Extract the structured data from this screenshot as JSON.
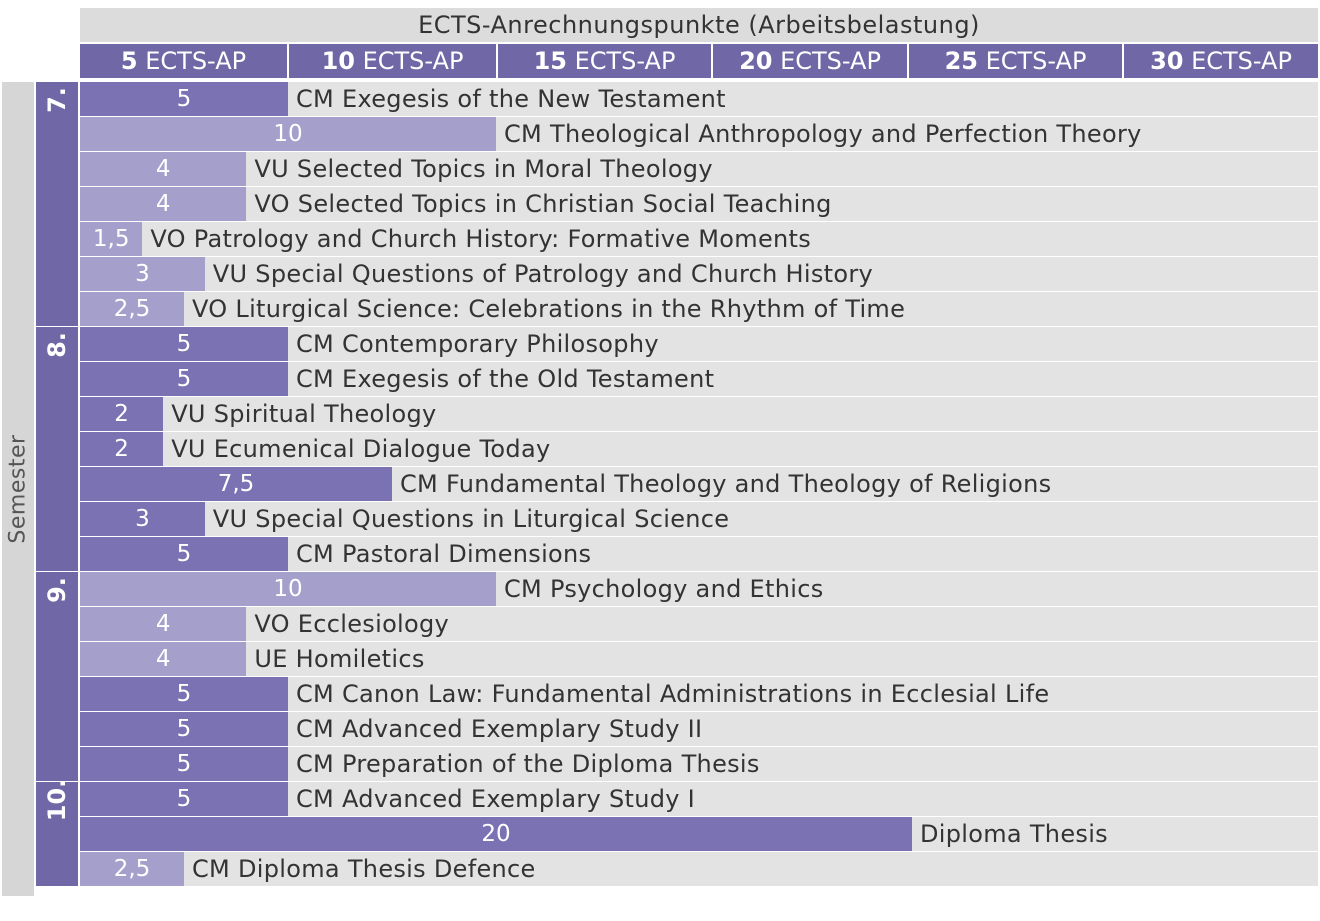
{
  "chart_data": {
    "type": "bar",
    "orientation": "horizontal",
    "title": "ECTS-Anrechnungspunkte (Arbeitsbelastung)",
    "x_ticks": [
      {
        "num": "5",
        "unit": " ECTS-AP"
      },
      {
        "num": "10",
        "unit": " ECTS-AP"
      },
      {
        "num": "15",
        "unit": " ECTS-AP"
      },
      {
        "num": "20",
        "unit": " ECTS-AP"
      },
      {
        "num": "25",
        "unit": " ECTS-AP"
      },
      {
        "num": "30",
        "unit": " ECTS-AP"
      }
    ],
    "xlim": [
      0,
      30
    ],
    "ylabel": "Semester",
    "semesters": [
      {
        "label": "7.",
        "rows": [
          {
            "label": "5",
            "value": 5,
            "course": "CM Exegesis of the New Testament"
          },
          {
            "label": "10",
            "value": 10,
            "course": "CM Theological Anthropology and Perfection Theory"
          },
          {
            "label": "4",
            "value": 4,
            "course": "VU Selected Topics in Moral Theology"
          },
          {
            "label": "4",
            "value": 4,
            "course": "VO Selected Topics in Christian Social Teaching"
          },
          {
            "label": "1,5",
            "value": 1.5,
            "course": "VO Patrology and Church History: Formative Moments"
          },
          {
            "label": "3",
            "value": 3,
            "course": "VU Special Questions of Patrology and Church History"
          },
          {
            "label": "2,5",
            "value": 2.5,
            "course": "VO Liturgical Science: Celebrations in the Rhythm of Time"
          }
        ]
      },
      {
        "label": "8.",
        "rows": [
          {
            "label": "5",
            "value": 5,
            "course": "CM Contemporary Philosophy"
          },
          {
            "label": "5",
            "value": 5,
            "course": "CM Exegesis of the Old Testament"
          },
          {
            "label": "2",
            "value": 2,
            "course": "VU Spiritual Theology"
          },
          {
            "label": "2",
            "value": 2,
            "course": "VU Ecumenical Dialogue Today"
          },
          {
            "label": "7,5",
            "value": 7.5,
            "course": "CM Fundamental Theology and Theology of Religions"
          },
          {
            "label": "3",
            "value": 3,
            "course": "VU Special Questions in Liturgical Science"
          },
          {
            "label": "5",
            "value": 5,
            "course": "CM Pastoral Dimensions"
          }
        ]
      },
      {
        "label": "9.",
        "rows": [
          {
            "label": "10",
            "value": 10,
            "course": "CM Psychology and Ethics"
          },
          {
            "label": "4",
            "value": 4,
            "course": "VO Ecclesiology"
          },
          {
            "label": "4",
            "value": 4,
            "course": "UE Homiletics"
          },
          {
            "label": "5",
            "value": 5,
            "course": "CM Canon Law: Fundamental Administrations in Ecclesial Life"
          },
          {
            "label": "5",
            "value": 5,
            "course": "CM Advanced Exemplary Study II"
          },
          {
            "label": "5",
            "value": 5,
            "course": "CM Preparation of the Diploma Thesis"
          }
        ]
      },
      {
        "label": "10.",
        "rows": [
          {
            "label": "5",
            "value": 5,
            "course": "CM Advanced Exemplary Study I"
          },
          {
            "label": "20",
            "value": 20,
            "course": "Diploma Thesis"
          },
          {
            "label": "2,5",
            "value": 2.5,
            "course": "CM Diploma Thesis Defence"
          }
        ]
      }
    ],
    "colors": {
      "header_bg": "#6f67a6",
      "bar_light": "#a49fcb",
      "bar_dark": "#7a72b2",
      "row_bg": "#e3e3e3",
      "title_bg": "#dcdcdc"
    },
    "grid": false,
    "legend": "none"
  }
}
